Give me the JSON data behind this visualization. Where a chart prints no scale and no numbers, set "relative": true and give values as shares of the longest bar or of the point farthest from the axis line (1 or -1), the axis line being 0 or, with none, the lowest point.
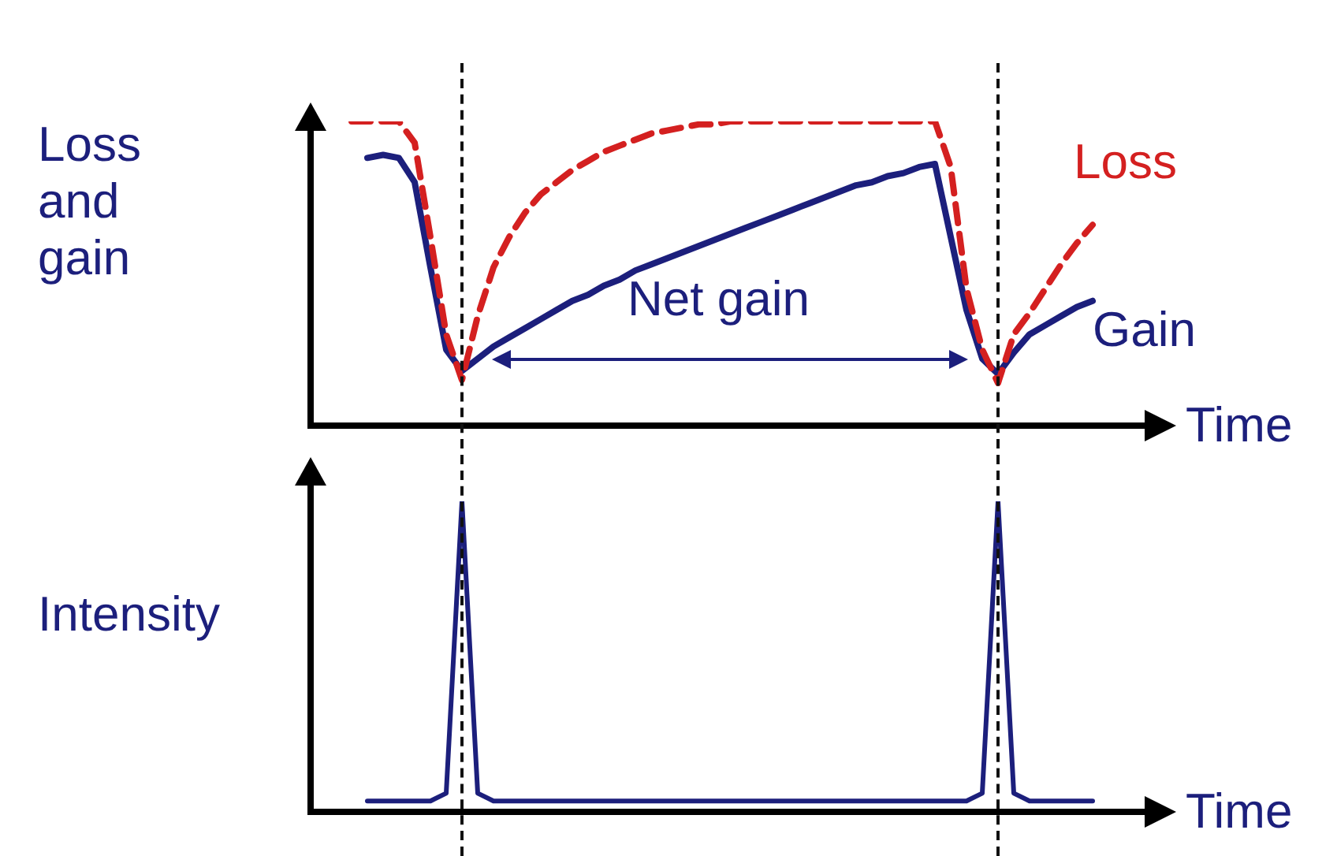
{
  "chart_data": [
    {
      "type": "line",
      "relative": true,
      "xlabel": "Time",
      "ylabel": "Loss and gain",
      "annotations": [
        "Net gain"
      ],
      "legend": false,
      "marker": "none",
      "categories": [
        null,
        null,
        null,
        null,
        null,
        null,
        null,
        null,
        null,
        null,
        null,
        null,
        null,
        null,
        null,
        null,
        null,
        null,
        null,
        null,
        null,
        null,
        null,
        null,
        null,
        null,
        null,
        null,
        null,
        null,
        null,
        null,
        null,
        null,
        null,
        null,
        null,
        null,
        null,
        null,
        null,
        null,
        null,
        null,
        null,
        null,
        null,
        null,
        null,
        null,
        null,
        null,
        null,
        null,
        null
      ],
      "series": [
        {
          "name": "Loss",
          "color": "#d42020",
          "line_style": "dashed",
          "values": [
            null,
            null,
            null,
            1.0,
            1.0,
            1.0,
            1.0,
            0.93,
            0.62,
            0.3,
            0.15,
            0.36,
            0.52,
            0.62,
            0.7,
            0.76,
            0.8,
            0.84,
            0.87,
            0.9,
            0.92,
            0.94,
            0.96,
            0.97,
            0.98,
            0.99,
            0.99,
            1.0,
            1.0,
            1.0,
            1.0,
            1.0,
            1.0,
            1.0,
            1.0,
            1.0,
            1.0,
            1.0,
            1.0,
            1.0,
            1.0,
            0.85,
            0.45,
            0.25,
            0.14,
            0.3,
            0.37,
            0.45,
            0.53,
            0.6,
            0.66,
            null,
            null,
            null,
            null
          ]
        },
        {
          "name": "Gain",
          "color": "#1c1f7c",
          "line_style": "solid",
          "values": [
            null,
            null,
            null,
            null,
            0.88,
            0.89,
            0.88,
            0.8,
            0.52,
            0.25,
            0.18,
            0.22,
            0.26,
            0.29,
            0.32,
            0.35,
            0.38,
            0.41,
            0.43,
            0.46,
            0.48,
            0.51,
            0.53,
            0.55,
            0.57,
            0.59,
            0.61,
            0.63,
            0.65,
            0.67,
            0.69,
            0.71,
            0.73,
            0.75,
            0.77,
            0.79,
            0.8,
            0.82,
            0.83,
            0.85,
            0.86,
            0.62,
            0.38,
            0.22,
            0.17,
            0.24,
            0.3,
            0.33,
            0.36,
            0.39,
            0.41,
            null,
            null,
            null,
            null
          ]
        }
      ]
    },
    {
      "type": "line",
      "relative": true,
      "xlabel": "Time",
      "ylabel": "Intensity",
      "marker": "none",
      "legend": false,
      "color": "#1c1f7c",
      "categories": [
        null,
        null,
        null,
        null,
        null,
        null,
        null,
        null,
        null,
        null,
        null,
        null,
        null,
        null,
        null,
        null,
        null,
        null,
        null,
        null,
        null,
        null,
        null,
        null,
        null,
        null,
        null,
        null,
        null,
        null,
        null,
        null,
        null,
        null,
        null,
        null,
        null,
        null,
        null,
        null,
        null,
        null,
        null,
        null,
        null,
        null,
        null,
        null,
        null,
        null,
        null,
        null,
        null,
        null,
        null
      ],
      "values": [
        null,
        null,
        null,
        null,
        0.035,
        0.035,
        0.035,
        0.035,
        0.035,
        0.06,
        1.0,
        0.06,
        0.035,
        0.035,
        0.035,
        0.035,
        0.035,
        0.035,
        0.035,
        0.035,
        0.035,
        0.035,
        0.035,
        0.035,
        0.035,
        0.035,
        0.035,
        0.035,
        0.035,
        0.035,
        0.035,
        0.035,
        0.035,
        0.035,
        0.035,
        0.035,
        0.035,
        0.035,
        0.035,
        0.035,
        0.035,
        0.035,
        0.035,
        0.06,
        1.0,
        0.06,
        0.035,
        0.035,
        0.035,
        0.035,
        0.035,
        null,
        null,
        null,
        null
      ]
    }
  ]
}
